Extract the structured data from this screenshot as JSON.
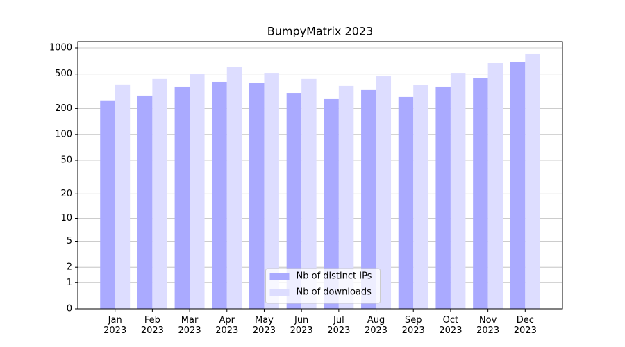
{
  "chart_data": {
    "type": "bar",
    "title": "BumpyMatrix 2023",
    "categories": [
      "Jan\n2023",
      "Feb\n2023",
      "Mar\n2023",
      "Apr\n2023",
      "May\n2023",
      "Jun\n2023",
      "Jul\n2023",
      "Aug\n2023",
      "Sep\n2023",
      "Oct\n2023",
      "Nov\n2023",
      "Dec\n2023"
    ],
    "series": [
      {
        "name": "Nb of distinct IPs",
        "color": "#aaaaff",
        "values": [
          248,
          281,
          357,
          406,
          392,
          302,
          261,
          332,
          271,
          357,
          446,
          680
        ]
      },
      {
        "name": "Nb of downloads",
        "color": "#ddddff",
        "values": [
          378,
          438,
          506,
          598,
          515,
          438,
          364,
          470,
          371,
          515,
          667,
          848
        ]
      }
    ],
    "yscale": "log1p",
    "ylim": [
      0,
      1180
    ],
    "yticks": [
      0,
      1,
      2,
      5,
      10,
      20,
      50,
      100,
      200,
      500,
      1000
    ],
    "grid": true,
    "legend": "lower center"
  }
}
